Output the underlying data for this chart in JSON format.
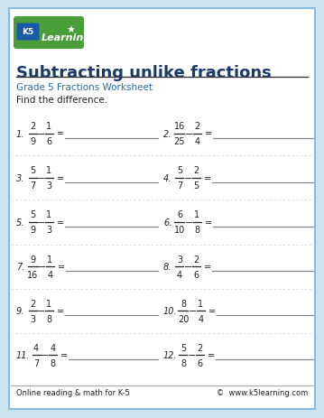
{
  "title": "Subtracting unlike fractions",
  "subtitle": "Grade 5 Fractions Worksheet",
  "instruction": "Find the difference.",
  "footer_left": "Online reading & math for K-5",
  "footer_right": "©  www.k5learning.com",
  "problems": [
    {
      "num": "1.",
      "n1": "2",
      "d1": "9",
      "n2": "1",
      "d2": "6"
    },
    {
      "num": "2.",
      "n1": "16",
      "d1": "25",
      "n2": "2",
      "d2": "4"
    },
    {
      "num": "3.",
      "n1": "5",
      "d1": "7",
      "n2": "1",
      "d2": "3"
    },
    {
      "num": "4.",
      "n1": "5",
      "d1": "7",
      "n2": "2",
      "d2": "5"
    },
    {
      "num": "5.",
      "n1": "5",
      "d1": "9",
      "n2": "1",
      "d2": "3"
    },
    {
      "num": "6.",
      "n1": "6",
      "d1": "10",
      "n2": "1",
      "d2": "8"
    },
    {
      "num": "7.",
      "n1": "9",
      "d1": "16",
      "n2": "1",
      "d2": "4"
    },
    {
      "num": "8.",
      "n1": "3",
      "d1": "4",
      "n2": "2",
      "d2": "6"
    },
    {
      "num": "9.",
      "n1": "2",
      "d1": "3",
      "n2": "1",
      "d2": "8"
    },
    {
      "num": "10.",
      "n1": "8",
      "d1": "20",
      "n2": "1",
      "d2": "4"
    },
    {
      "num": "11.",
      "n1": "4",
      "d1": "7",
      "n2": "4",
      "d2": "8"
    },
    {
      "num": "12.",
      "n1": "5",
      "d1": "8",
      "n2": "2",
      "d2": "6"
    }
  ],
  "bg_color": "#cce4f0",
  "page_bg": "#ffffff",
  "border_color": "#88bbdd",
  "title_color": "#1a3a6c",
  "subtitle_color": "#2a6aaa",
  "text_color": "#222222",
  "line_color": "#888888",
  "sep_color": "#cccccc",
  "logo_green": "#4a9e3a",
  "logo_blue": "#1a5aaa",
  "logo_green2": "#5ab040"
}
